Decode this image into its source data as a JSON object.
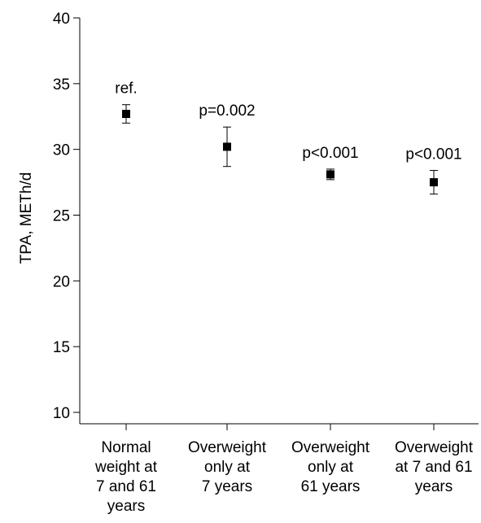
{
  "chart_data": {
    "type": "scatter",
    "ylabel": "TPA, METh/d",
    "ylim": [
      10,
      40
    ],
    "yticks": [
      10,
      15,
      20,
      25,
      30,
      35,
      40
    ],
    "categories": [
      [
        "Normal",
        "weight at",
        "7 and 61",
        "years"
      ],
      [
        "Overweight",
        "only at",
        "7 years"
      ],
      [
        "Overweight",
        "only at",
        "61 years"
      ],
      [
        "Overweight",
        "at 7 and 61",
        "years"
      ]
    ],
    "points": [
      {
        "value": 32.7,
        "lower": 32.0,
        "upper": 33.4,
        "annotation": "ref."
      },
      {
        "value": 30.2,
        "lower": 28.7,
        "upper": 31.7,
        "annotation": "p=0.002"
      },
      {
        "value": 28.1,
        "lower": 27.7,
        "upper": 28.5,
        "annotation": "p<0.001"
      },
      {
        "value": 27.5,
        "lower": 26.6,
        "upper": 28.4,
        "annotation": "p<0.001"
      }
    ],
    "grid": false,
    "legend": "none"
  }
}
